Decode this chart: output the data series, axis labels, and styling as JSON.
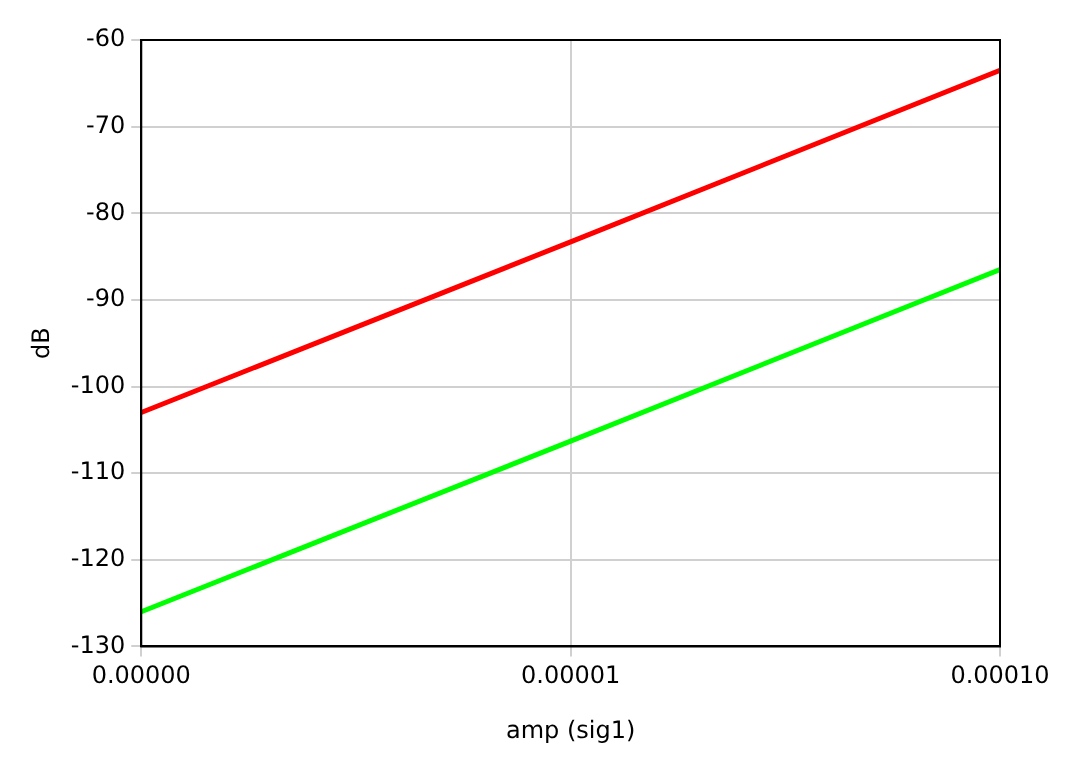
{
  "chart_data": {
    "type": "line",
    "xlabel": "amp (sig1)",
    "ylabel": "dB",
    "log": "x",
    "x": [
      1e-06,
      1e-05,
      0.0001
    ],
    "series": [
      {
        "color": "#ff0000",
        "values": [
          -103,
          -83.3,
          -63.5
        ]
      },
      {
        "color": "#00ff00",
        "values": [
          -126,
          -106.3,
          -86.5
        ]
      }
    ],
    "xlim": [
      1e-06,
      0.0001
    ],
    "xticks": [
      {
        "value": 1e-06,
        "label": "0.00000"
      },
      {
        "value": 1e-05,
        "label": "0.00001"
      },
      {
        "value": 0.0001,
        "label": "0.00010"
      }
    ],
    "ylim": [
      -130,
      -60
    ],
    "yticks": [
      -130,
      -120,
      -110,
      -100,
      -90,
      -80,
      -70,
      -60
    ],
    "grid": true,
    "legend": false,
    "marker": "none",
    "line_style": "solid"
  }
}
